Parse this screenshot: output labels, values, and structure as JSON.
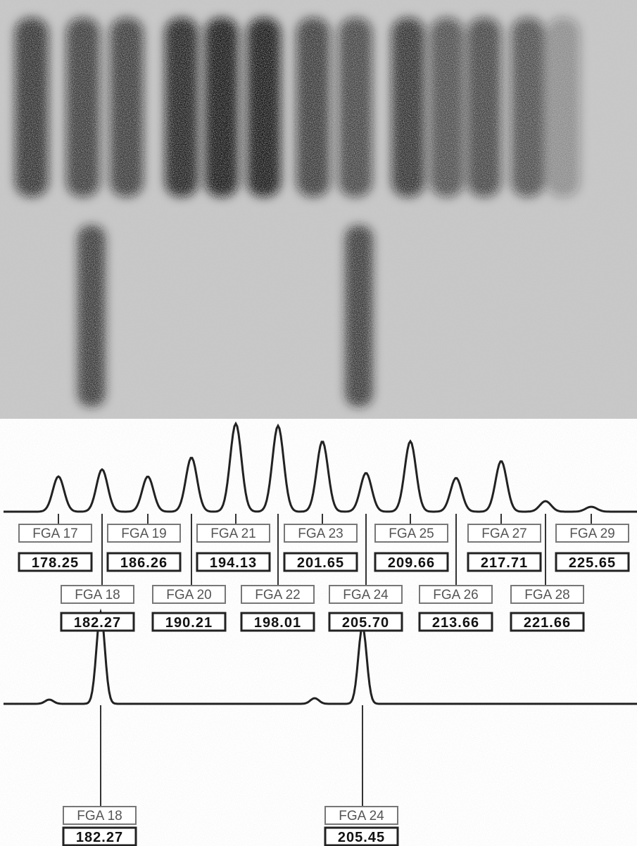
{
  "ladder": [
    {
      "allele": "FGA 17",
      "size": "178.25"
    },
    {
      "allele": "FGA 18",
      "size": "182.27"
    },
    {
      "allele": "FGA 19",
      "size": "186.26"
    },
    {
      "allele": "FGA 20",
      "size": "190.21"
    },
    {
      "allele": "FGA 21",
      "size": "194.13"
    },
    {
      "allele": "FGA 22",
      "size": "198.01"
    },
    {
      "allele": "FGA 23",
      "size": "201.65"
    },
    {
      "allele": "FGA 24",
      "size": "205.70"
    },
    {
      "allele": "FGA 25",
      "size": "209.66"
    },
    {
      "allele": "FGA 26",
      "size": "213.66"
    },
    {
      "allele": "FGA 27",
      "size": "217.71"
    },
    {
      "allele": "FGA 28",
      "size": "221.66"
    },
    {
      "allele": "FGA 29",
      "size": "225.65"
    }
  ],
  "sample": [
    {
      "allele": "FGA 18",
      "size": "182.27"
    },
    {
      "allele": "FGA 24",
      "size": "205.45"
    }
  ]
}
